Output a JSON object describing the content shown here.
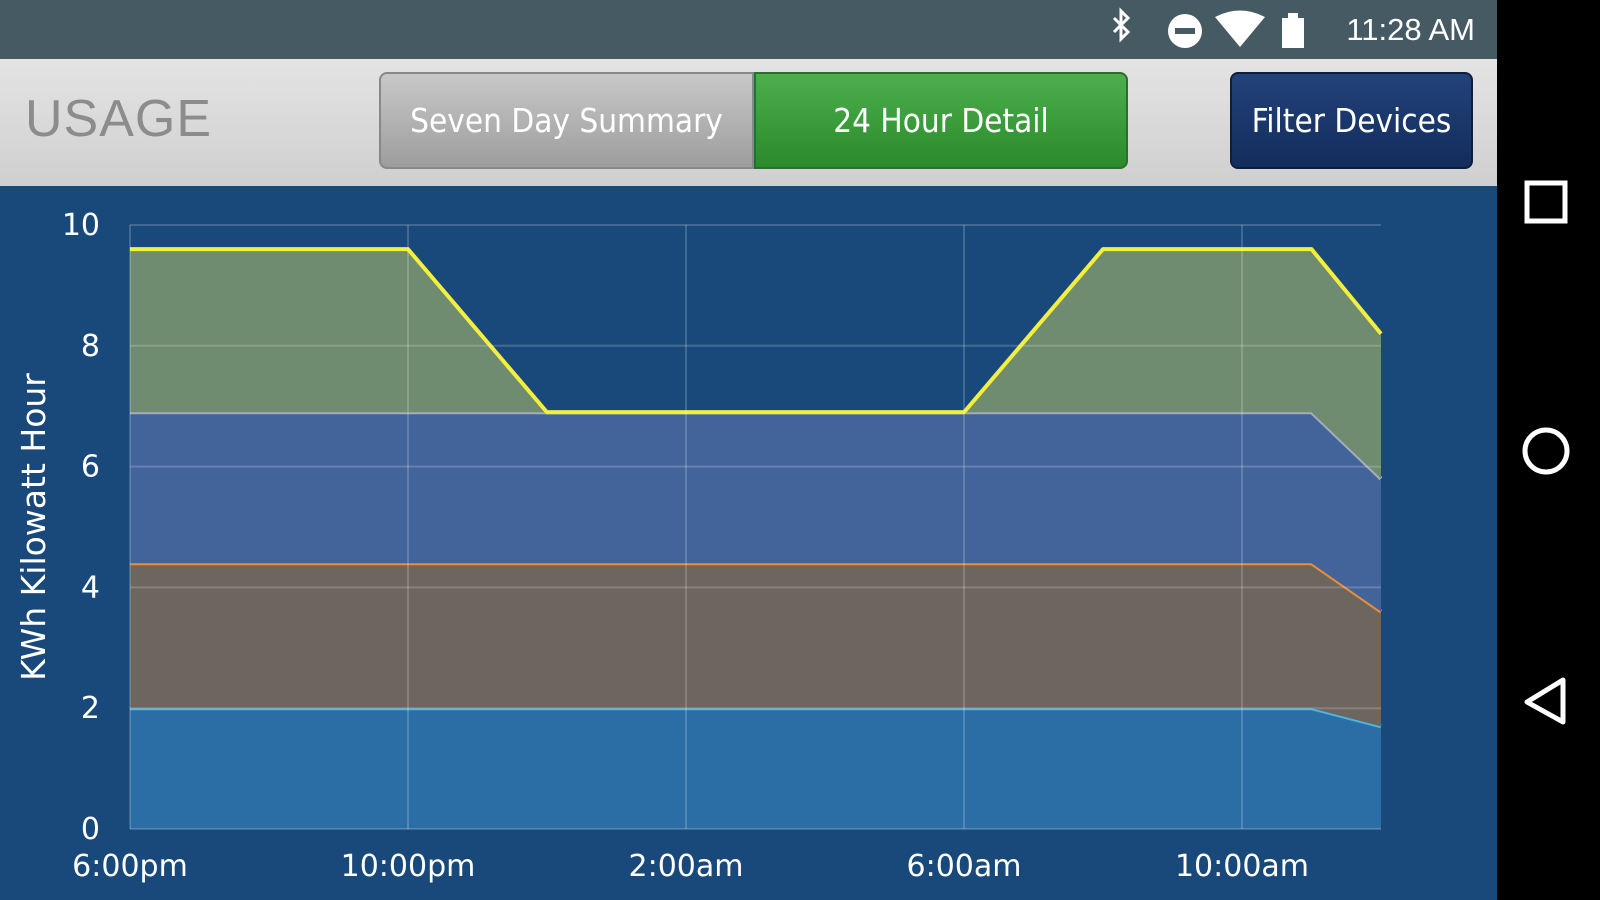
{
  "status_bar": {
    "time": "11:28 AM"
  },
  "header": {
    "title": "USAGE",
    "tabs": [
      "Seven Day Summary",
      "24 Hour Detail"
    ],
    "active_tab": 1,
    "button": "Filter Devices"
  },
  "chart_data": {
    "type": "stacked_area",
    "y_label": "KWh Kilowatt Hour",
    "categories": [
      "6:00pm",
      null,
      null,
      null,
      "10:00pm",
      null,
      null,
      null,
      "2:00am",
      null,
      null,
      null,
      "6:00am",
      null,
      null,
      null,
      "10:00am",
      null,
      null
    ],
    "series": [
      {
        "color": "#2b6ea6",
        "line_color": "#4fb3e6",
        "values": [
          2,
          2,
          2,
          2,
          2,
          2,
          2,
          2,
          2,
          2,
          2,
          2,
          2,
          2,
          2,
          2,
          2,
          2,
          1.7
        ]
      },
      {
        "color": "#6d665f",
        "line_color": "#e98c3c",
        "values": [
          2.4,
          2.4,
          2.4,
          2.4,
          2.4,
          2.4,
          2.4,
          2.4,
          2.4,
          2.4,
          2.4,
          2.4,
          2.4,
          2.4,
          2.4,
          2.4,
          2.4,
          2.4,
          1.9
        ]
      },
      {
        "color": "#43649b",
        "line_color": "#a3aebd",
        "values": [
          2.5,
          2.5,
          2.5,
          2.5,
          2.5,
          2.5,
          2.5,
          2.5,
          2.5,
          2.5,
          2.5,
          2.5,
          2.5,
          2.5,
          2.5,
          2.5,
          2.5,
          2.5,
          2.2
        ]
      },
      {
        "color": "#6f8b70",
        "line_color": "#f2ef3e",
        "values": [
          2.7,
          2.7,
          2.7,
          2.7,
          2.7,
          1.35,
          0,
          0,
          0,
          0,
          0,
          0,
          0,
          1.35,
          2.7,
          2.7,
          2.7,
          2.7,
          2.4
        ]
      }
    ],
    "ylim": [
      0,
      10
    ],
    "yticks": [
      0,
      2,
      4,
      6,
      8,
      10
    ],
    "grid": true
  }
}
